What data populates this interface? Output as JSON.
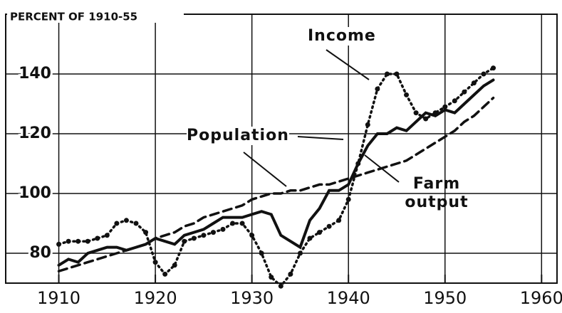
{
  "chart_data": {
    "type": "line",
    "title": "PERCENT OF 1910-55",
    "x": [
      1910,
      1911,
      1912,
      1913,
      1914,
      1915,
      1916,
      1917,
      1918,
      1919,
      1920,
      1921,
      1922,
      1923,
      1924,
      1925,
      1926,
      1927,
      1928,
      1929,
      1930,
      1931,
      1932,
      1933,
      1934,
      1935,
      1936,
      1937,
      1938,
      1939,
      1940,
      1941,
      1942,
      1943,
      1944,
      1945,
      1946,
      1947,
      1948,
      1949,
      1950,
      1951,
      1952,
      1953,
      1954,
      1955
    ],
    "series": [
      {
        "name": "Income",
        "color": "#111111",
        "style": "dotted",
        "values": [
          83,
          84,
          84,
          84,
          85,
          86,
          90,
          91,
          90,
          87,
          77,
          73,
          76,
          84,
          85,
          86,
          87,
          88,
          90,
          90,
          86,
          80,
          72,
          69,
          73,
          80,
          85,
          87,
          89,
          91,
          98,
          110,
          123,
          135,
          140,
          140,
          133,
          127,
          125,
          127,
          129,
          131,
          134,
          137,
          140,
          142
        ]
      },
      {
        "name": "Population",
        "color": "#111111",
        "style": "dashed",
        "values": [
          74,
          75,
          76,
          77,
          78,
          79,
          80,
          81,
          82,
          83,
          85,
          86,
          87,
          89,
          90,
          92,
          93,
          94,
          95,
          96,
          98,
          99,
          100,
          100,
          101,
          101,
          102,
          103,
          103,
          104,
          105,
          106,
          107,
          108,
          109,
          110,
          111,
          113,
          115,
          117,
          119,
          121,
          124,
          126,
          129,
          132
        ]
      },
      {
        "name": "Farm output",
        "color": "#111111",
        "style": "solid",
        "values": [
          76,
          78,
          77,
          80,
          81,
          82,
          82,
          81,
          82,
          83,
          85,
          84,
          83,
          86,
          87,
          88,
          90,
          92,
          92,
          92,
          93,
          94,
          93,
          86,
          84,
          82,
          91,
          95,
          101,
          101,
          103,
          110,
          116,
          120,
          120,
          122,
          121,
          124,
          127,
          126,
          128,
          127,
          130,
          133,
          136,
          138
        ]
      }
    ],
    "xlim": [
      1904.5,
      1961.6
    ],
    "xticks": [
      1910,
      1920,
      1930,
      1940,
      1950,
      1960
    ],
    "ylim": [
      70,
      160
    ],
    "yticks": [
      80,
      100,
      120,
      140
    ],
    "grid": true
  }
}
